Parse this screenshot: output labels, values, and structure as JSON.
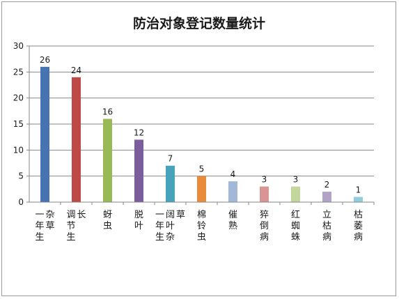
{
  "chart_data": {
    "type": "bar",
    "title": "防治对象登记数量统计",
    "xlabel": "",
    "ylabel": "",
    "ylim": [
      0,
      30
    ],
    "yticks": [
      0,
      5,
      10,
      15,
      20,
      25,
      30
    ],
    "grid": true,
    "legend": "none",
    "categories": [
      "一年生杂草",
      "调节生长",
      "蚜虫",
      "脱叶",
      "一年生阔叶杂草",
      "棉铃虫",
      "催熟",
      "猝倒病",
      "红蜘蛛",
      "立枯病",
      "枯萎病"
    ],
    "values": [
      26,
      24,
      16,
      12,
      7,
      5,
      4,
      3,
      3,
      2,
      1
    ],
    "colors": [
      "#4673b1",
      "#be4a47",
      "#98b954",
      "#7b5d9e",
      "#46a3bb",
      "#e98b3a",
      "#a3b8d9",
      "#d99594",
      "#c3d69b",
      "#b2a2c7",
      "#93cddd"
    ]
  }
}
